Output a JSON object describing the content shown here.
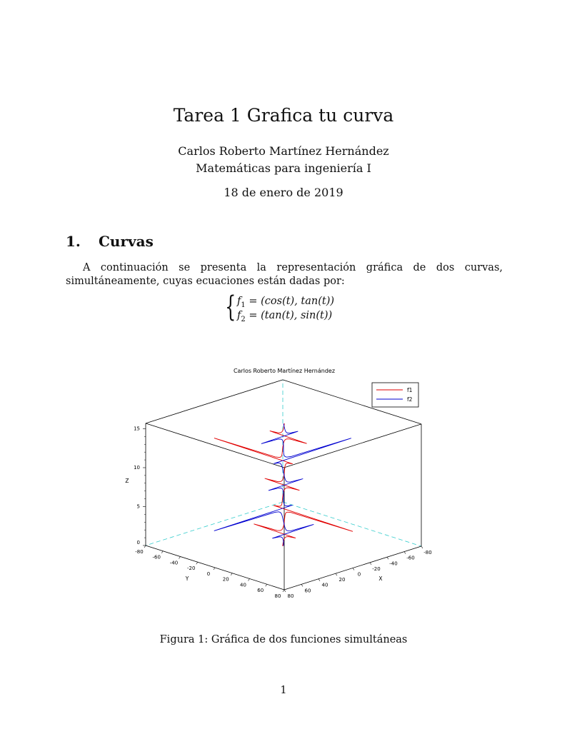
{
  "document": {
    "title": "Tarea 1 Grafica tu curva",
    "author": "Carlos Roberto Martínez Hernández",
    "affiliation": "Matemáticas para ingeniería I",
    "date": "18 de enero de 2019",
    "section": {
      "number": "1.",
      "title": "Curvas"
    },
    "paragraph": "A continuación se presenta la representación gráfica de dos curvas, simultáneamente, cuyas ecuaciones están dadas por:",
    "equations": [
      {
        "fn": "f",
        "sub": "1",
        "rhs": " = (cos(t), tan(t))"
      },
      {
        "fn": "f",
        "sub": "2",
        "rhs": " = (tan(t), sin(t))"
      }
    ],
    "caption": "Figura 1: Gráfica de dos funciones simultáneas",
    "page_number": "1"
  },
  "chart_data": {
    "type": "line3d",
    "title": "Carlos Roberto Martínez Hernández",
    "xlabel": "X",
    "ylabel": "Y",
    "zlabel": "Z",
    "xlim": [
      -80,
      80
    ],
    "ylim": [
      -80,
      80
    ],
    "zlim": [
      0,
      15.7
    ],
    "x_ticks": [
      "-80",
      "-60",
      "-40",
      "-20",
      "0",
      "20",
      "40",
      "60",
      "80"
    ],
    "y_ticks": [
      "-80",
      "-60",
      "-40",
      "-20",
      "0",
      "20",
      "40",
      "60",
      "80"
    ],
    "z_ticks": [
      "0",
      "5",
      "10",
      "15"
    ],
    "legend_position": "top-right",
    "series": [
      {
        "name": "f1",
        "x": "cos(t)",
        "y": "tan(t)",
        "z": "t",
        "color": "#e00000"
      },
      {
        "name": "f2",
        "x": "tan(t)",
        "y": "sin(t)",
        "z": "t",
        "color": "#0000d0"
      }
    ],
    "t_range": [
      0,
      15.7
    ],
    "hidden_edge_color": "#33cccc"
  }
}
